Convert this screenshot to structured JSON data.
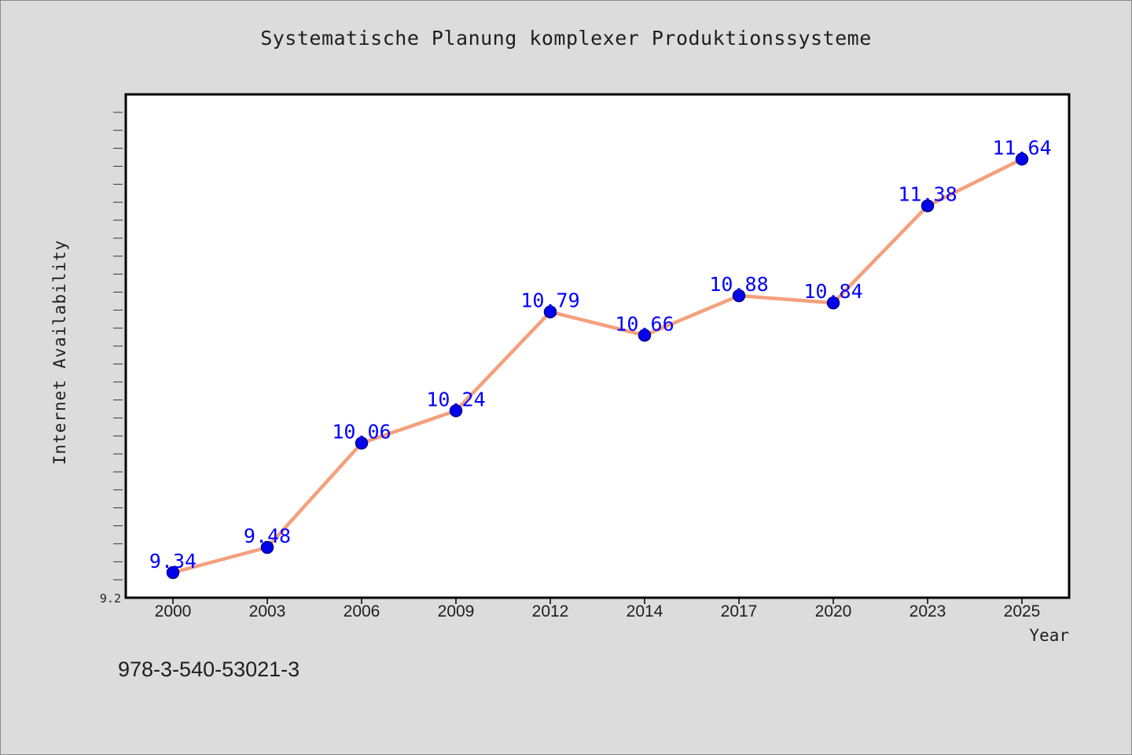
{
  "footer": {
    "isbn": "978-3-540-53021-3"
  },
  "chart_data": {
    "type": "line",
    "title": "Systematische Planung komplexer Produktionssysteme",
    "xlabel": "Year",
    "ylabel": "Internet Availability",
    "categories": [
      "2000",
      "2003",
      "2006",
      "2009",
      "2012",
      "2014",
      "2017",
      "2020",
      "2023",
      "2025"
    ],
    "series": [
      {
        "values": [
          9.34,
          9.48,
          10.06,
          10.24,
          10.79,
          10.66,
          10.88,
          10.84,
          11.38,
          11.64
        ],
        "data_labels": [
          "9.34",
          "9.48",
          "10.06",
          "10.24",
          "10.79",
          "10.66",
          "10.88",
          "10.84",
          "11.38",
          "11.64"
        ]
      }
    ],
    "ylim": [
      9.2,
      12.0
    ],
    "ytick_labels": [
      "9.2"
    ],
    "grid": false,
    "colors": {
      "line": "#f4a07c",
      "marker": "#0000ee",
      "marker_edge": "#00008b",
      "data_label": "#0000ff",
      "plot_background": "#ffffff",
      "page_background": "#dcdcdc"
    }
  }
}
